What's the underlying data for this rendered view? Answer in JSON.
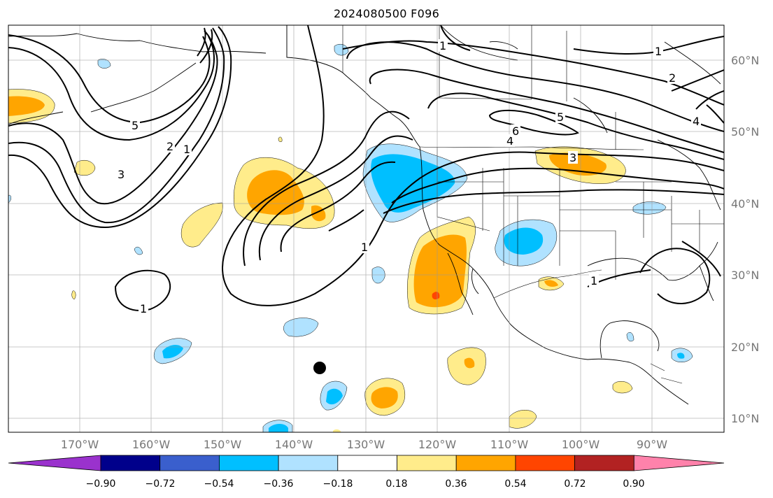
{
  "title": "2024080500 F096",
  "map": {
    "lat_labels": [
      "60°N",
      "50°N",
      "40°N",
      "30°N",
      "20°N",
      "10°N"
    ],
    "lon_labels": [
      "170°W",
      "160°W",
      "150°W",
      "140°W",
      "130°W",
      "120°W",
      "110°W",
      "100°W",
      "90°W"
    ],
    "contour_labels": [
      "1",
      "1",
      "1",
      "1",
      "1",
      "1",
      "2",
      "2",
      "3",
      "3",
      "4",
      "4",
      "5",
      "5",
      "6"
    ],
    "grid": true,
    "marker": "black-dot"
  },
  "colorbar": {
    "ticks": [
      "−0.90",
      "−0.72",
      "−0.54",
      "−0.36",
      "−0.18",
      "0.18",
      "0.36",
      "0.54",
      "0.72",
      "0.90"
    ],
    "colors": [
      "#9a32cd",
      "#00008b",
      "#3a5fcd",
      "#00bfff",
      "#b0e2ff",
      "#ffffff",
      "#ffec8b",
      "#ffa500",
      "#ff4500",
      "#b22222",
      "#ff82ab"
    ]
  }
}
